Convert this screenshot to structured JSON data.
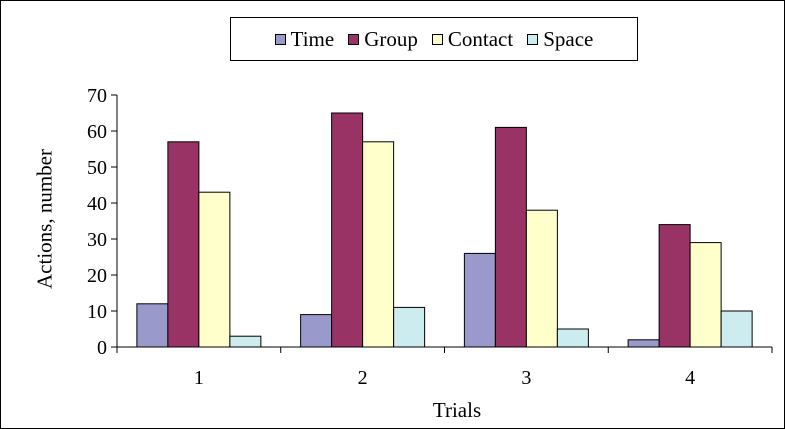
{
  "chart_data": {
    "type": "bar",
    "categories": [
      "1",
      "2",
      "3",
      "4"
    ],
    "series": [
      {
        "name": "Time",
        "color": "#9999cc",
        "values": [
          12,
          9,
          26,
          2
        ]
      },
      {
        "name": "Group",
        "color": "#993366",
        "values": [
          57,
          65,
          61,
          34
        ]
      },
      {
        "name": "Contact",
        "color": "#ffffcc",
        "values": [
          43,
          57,
          38,
          29
        ]
      },
      {
        "name": "Space",
        "color": "#ccecf0",
        "values": [
          3,
          11,
          5,
          10
        ]
      }
    ],
    "yticks": [
      "0",
      "10",
      "20",
      "30",
      "40",
      "50",
      "60",
      "70"
    ],
    "ylim": [
      0,
      70
    ],
    "xlabel": "Trials",
    "ylabel": "Actions, number",
    "legend_position": "top",
    "grid": false
  }
}
